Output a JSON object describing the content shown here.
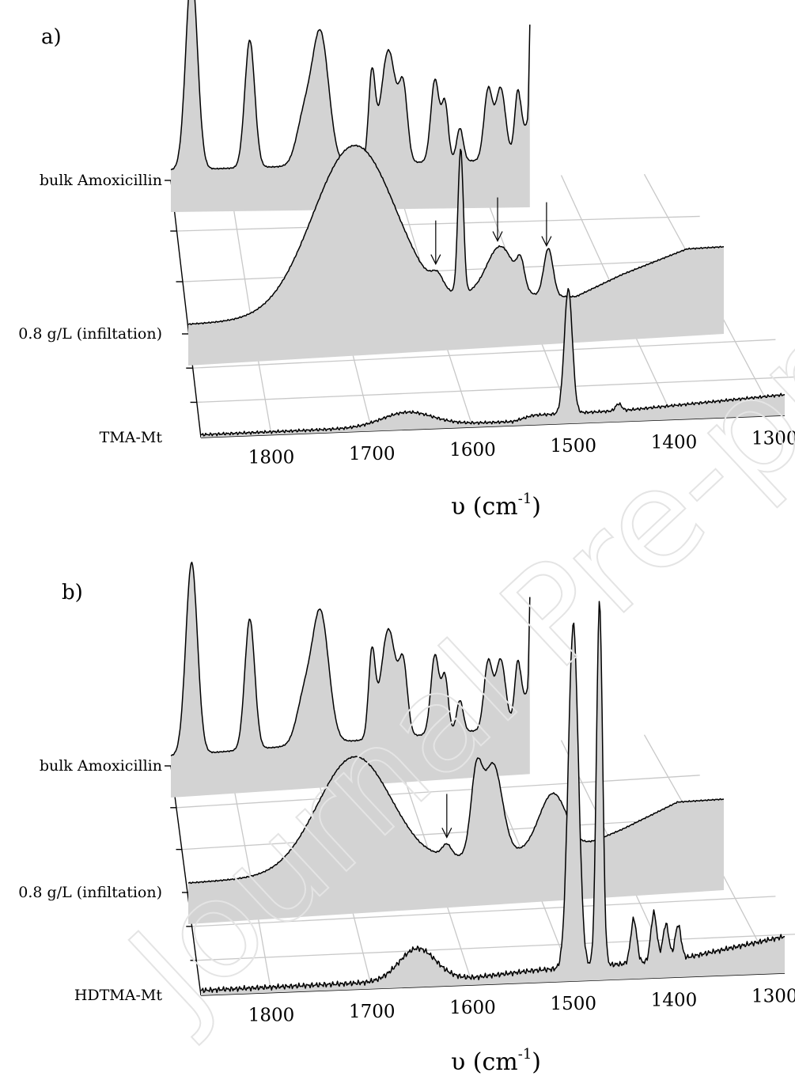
{
  "watermark": "Journal Pre-proofs",
  "chart_data": [
    {
      "type": "area",
      "panel_label": "a)",
      "xlabel": "υ (cm",
      "xlabel_sup": "-1",
      "xlabel_close": ")",
      "x_ticks": [
        1800,
        1700,
        1600,
        1500,
        1400,
        1300
      ],
      "xlim": [
        1870,
        1290
      ],
      "x_reversed": true,
      "grid": true,
      "series": [
        {
          "name": "bulk Amoxicillin",
          "peaks": [
            [
              1845,
              0.97,
              7
            ],
            [
              1775,
              0.62,
              6
            ],
            [
              1710,
              0.22,
              9
            ],
            [
              1690,
              0.64,
              10
            ],
            [
              1628,
              0.42,
              4
            ],
            [
              1608,
              0.55,
              9
            ],
            [
              1590,
              0.33,
              5
            ],
            [
              1552,
              0.4,
              5
            ],
            [
              1540,
              0.28,
              4
            ],
            [
              1522,
              0.16,
              4
            ],
            [
              1488,
              0.34,
              5
            ],
            [
              1473,
              0.35,
              6
            ],
            [
              1452,
              0.34,
              4
            ]
          ],
          "baseline": [
            [
              1870,
              0.05
            ],
            [
              1600,
              0.07
            ],
            [
              1450,
              0.08
            ],
            [
              1440,
              0.28
            ],
            [
              1437,
              0.9
            ]
          ],
          "arrows": []
        },
        {
          "name": "0.8 g/L (infiltation)",
          "peaks": [
            [
              1690,
              0.7,
              45
            ],
            [
              1600,
              0.05,
              6
            ],
            [
              1575,
              0.6,
              3
            ],
            [
              1532,
              0.21,
              15
            ],
            [
              1510,
              0.1,
              4
            ],
            [
              1480,
              0.2,
              5
            ]
          ],
          "baseline": [
            [
              1870,
              0.04
            ],
            [
              1620,
              0.04
            ],
            [
              1560,
              0.08
            ],
            [
              1450,
              0.06
            ],
            [
              1400,
              0.14
            ],
            [
              1330,
              0.23
            ]
          ],
          "arrows": [
            1602,
            1535,
            1482
          ]
        },
        {
          "name": "TMA-Mt",
          "peaks": [
            [
              1665,
              0.1,
              25
            ],
            [
              1505,
              0.9,
              4
            ],
            [
              1455,
              0.05,
              3
            ]
          ],
          "baseline": [
            [
              1870,
              0.02
            ],
            [
              1560,
              0.03
            ],
            [
              1540,
              0.07
            ],
            [
              1450,
              0.08
            ],
            [
              1290,
              0.15
            ]
          ],
          "arrows": []
        }
      ]
    },
    {
      "type": "area",
      "panel_label": "b)",
      "xlabel": "υ (cm",
      "xlabel_sup": "-1",
      "xlabel_close": ")",
      "x_ticks": [
        1800,
        1700,
        1600,
        1500,
        1400,
        1300
      ],
      "xlim": [
        1870,
        1290
      ],
      "x_reversed": true,
      "grid": true,
      "series": [
        {
          "name": "bulk Amoxicillin",
          "peaks": [
            [
              1845,
              0.97,
              7
            ],
            [
              1775,
              0.66,
              6
            ],
            [
              1710,
              0.22,
              9
            ],
            [
              1690,
              0.66,
              10
            ],
            [
              1628,
              0.42,
              4
            ],
            [
              1608,
              0.55,
              9
            ],
            [
              1590,
              0.33,
              5
            ],
            [
              1552,
              0.4,
              5
            ],
            [
              1540,
              0.28,
              4
            ],
            [
              1522,
              0.16,
              4
            ],
            [
              1488,
              0.34,
              5
            ],
            [
              1473,
              0.35,
              6
            ],
            [
              1452,
              0.34,
              4
            ]
          ],
          "baseline": [
            [
              1870,
              0.05
            ],
            [
              1600,
              0.07
            ],
            [
              1450,
              0.08
            ],
            [
              1440,
              0.28
            ],
            [
              1437,
              0.9
            ]
          ],
          "arrows": []
        },
        {
          "name": "0.8 g/L (infiltation)",
          "peaks": [
            [
              1690,
              0.48,
              40
            ],
            [
              1590,
              0.05,
              5
            ],
            [
              1558,
              0.32,
              6
            ],
            [
              1540,
              0.38,
              10
            ],
            [
              1475,
              0.24,
              15
            ]
          ],
          "baseline": [
            [
              1870,
              0.04
            ],
            [
              1620,
              0.05
            ],
            [
              1560,
              0.08
            ],
            [
              1450,
              0.08
            ],
            [
              1400,
              0.15
            ],
            [
              1340,
              0.25
            ]
          ],
          "arrows": [
            1590
          ]
        },
        {
          "name": "HDTMA-Mt",
          "peaks": [
            [
              1655,
              0.13,
              18
            ],
            [
              1500,
              1.4,
              5
            ],
            [
              1474,
              1.48,
              3
            ],
            [
              1440,
              0.18,
              3
            ],
            [
              1420,
              0.2,
              3
            ],
            [
              1408,
              0.15,
              3
            ],
            [
              1396,
              0.14,
              3
            ]
          ],
          "baseline": [
            [
              1870,
              0.02
            ],
            [
              1600,
              0.03
            ],
            [
              1540,
              0.05
            ],
            [
              1400,
              0.07
            ],
            [
              1290,
              0.15
            ]
          ],
          "arrows": []
        }
      ]
    }
  ]
}
